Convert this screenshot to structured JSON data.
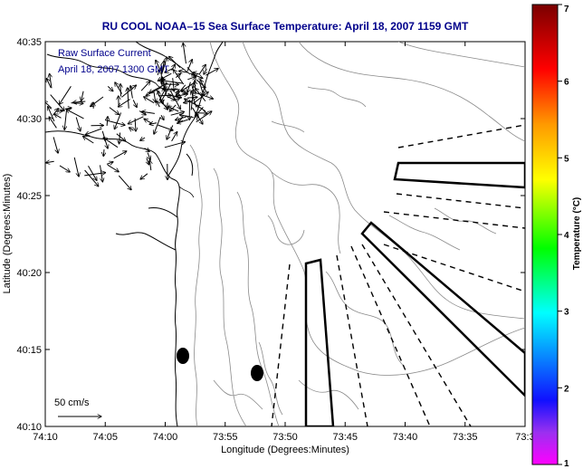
{
  "title": "RU COOL  NOAA–15  Sea Surface Temperature:  April 18, 2007 1159 GMT",
  "legend": {
    "line1": "Raw Surface Current",
    "line2": "April 18, 2007 1300 GMT"
  },
  "scale_label": "50 cm/s",
  "axes": {
    "xlabel": "Longitude (Degrees:Minutes)",
    "ylabel": "Latitude (Degrees:Minutes)",
    "xticks": [
      "74:10",
      "74:05",
      "74:00",
      "73:55",
      "73:50",
      "73:45",
      "73:40",
      "73:35",
      "73:3"
    ],
    "yticks": [
      "40:35",
      "40:30",
      "40:25",
      "40:20",
      "40:15",
      "40:10"
    ]
  },
  "colorbar": {
    "title": "Temperature (°C)",
    "ticks": [
      "7",
      "6",
      "5",
      "4",
      "3",
      "2",
      "1"
    ],
    "min": 1,
    "max": 7
  },
  "colors": {
    "title": "#00008b",
    "coast": "#000000",
    "bathymetry": "#888888"
  }
}
